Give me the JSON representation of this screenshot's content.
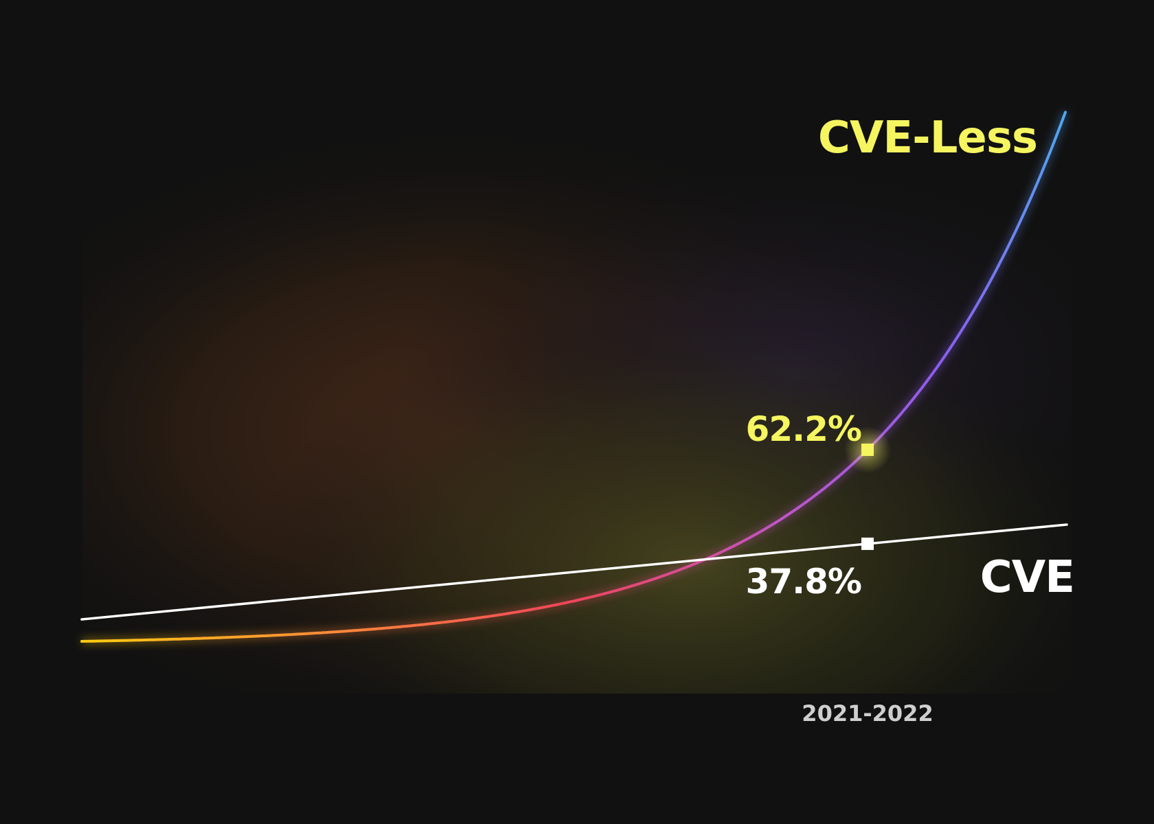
{
  "chart_data": {
    "type": "line",
    "x_tick_labels": [
      "",
      "",
      "",
      "2021-2022"
    ],
    "series": [
      {
        "name": "CVE-Less",
        "color": "#f5f560",
        "gradient": [
          "#ffcc11",
          "#ff8a3a",
          "#f0455a",
          "#c055c8",
          "#8a5ef0",
          "#4ea8f0"
        ],
        "highlight": {
          "category": "2021-2022",
          "value_label": "62.2%"
        }
      },
      {
        "name": "CVE",
        "color": "#ffffff",
        "highlight": {
          "category": "2021-2022",
          "value_label": "37.8%"
        }
      }
    ],
    "grid": {
      "vertical": true,
      "horizontal": false
    },
    "legend": "inline-right",
    "colors": {
      "background": "#111111",
      "cve_less_label": "#f5f560",
      "cve_label": "#ffffff",
      "tick_text": "#cfcfcf"
    }
  }
}
